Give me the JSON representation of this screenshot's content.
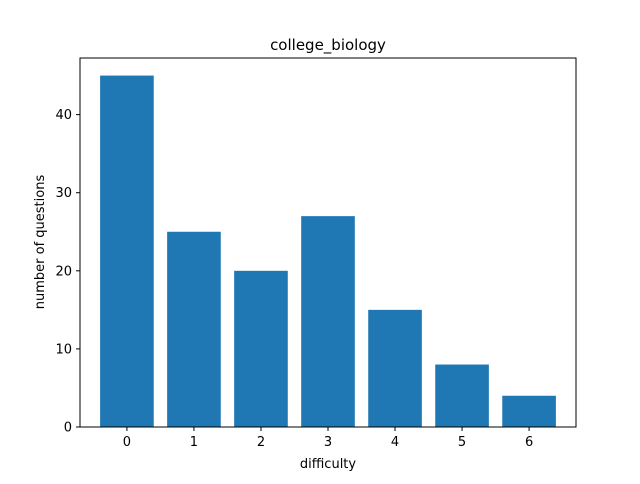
{
  "chart_data": {
    "type": "bar",
    "title": "college_biology",
    "xlabel": "difficulty",
    "ylabel": "number of questions",
    "categories": [
      "0",
      "1",
      "2",
      "3",
      "4",
      "5",
      "6"
    ],
    "values": [
      45,
      25,
      20,
      27,
      15,
      8,
      4
    ],
    "ylim": [
      0,
      47.25
    ],
    "yticks": [
      0,
      10,
      20,
      30,
      40
    ],
    "grid": false,
    "legend": "none",
    "bar_color": "#1f77b4"
  }
}
